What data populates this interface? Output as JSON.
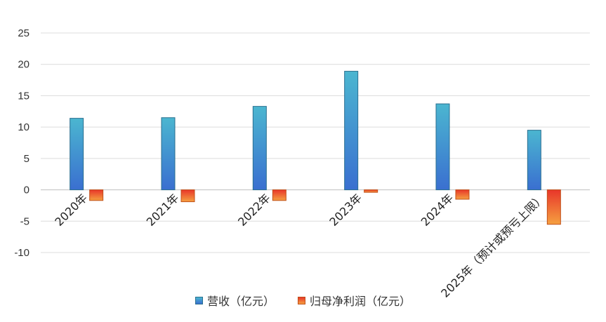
{
  "chart_data": {
    "type": "bar",
    "categories": [
      "2020年",
      "2021年",
      "2022年",
      "2023年",
      "2024年",
      "2025年（预计或预亏上限）"
    ],
    "series": [
      {
        "name": "营收（亿元）",
        "values": [
          11.4,
          11.5,
          13.3,
          18.9,
          13.7,
          9.5
        ],
        "color_top": "#4bb6d0",
        "color_bottom": "#3a6fd0",
        "stroke": "#2a6f8f"
      },
      {
        "name": "归母净利润（亿元）",
        "values": [
          -1.7,
          -1.9,
          -1.7,
          -0.4,
          -1.5,
          -5.5
        ],
        "color_top": "#e8362a",
        "color_bottom": "#f5a040",
        "stroke": "#c0501a"
      }
    ],
    "ylim": [
      -10,
      25
    ],
    "yticks": [
      -10,
      -5,
      0,
      5,
      10,
      15,
      20,
      25
    ],
    "grid": true,
    "legend_position": "bottom"
  }
}
